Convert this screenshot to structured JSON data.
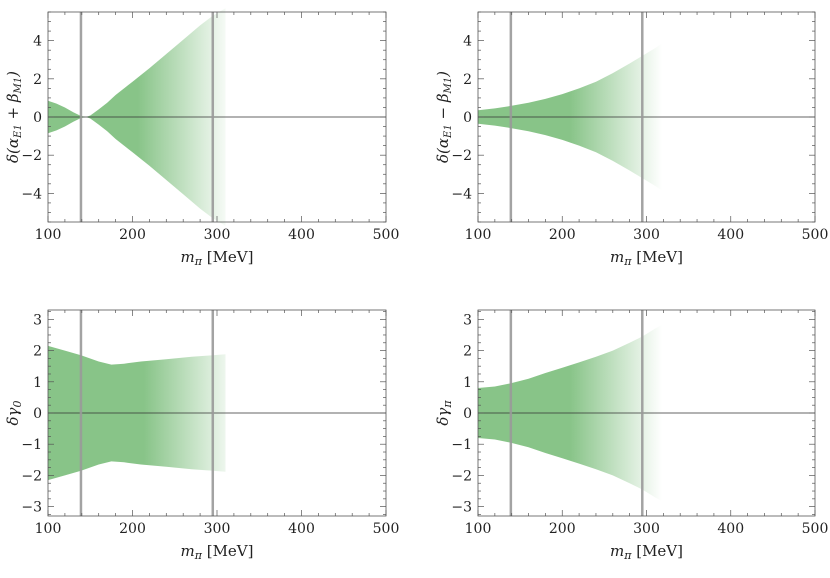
{
  "colors": {
    "band": "#5aad5a",
    "zero_line": "#333333",
    "marker_line": "#9a9a9a"
  },
  "chart_data": [
    {
      "type": "area",
      "ylabel_html": "δ(α<tspan font-size=\"10\" dy=\"3\">E1</tspan><tspan dy=\"-3\"> + β</tspan><tspan font-size=\"10\" dy=\"3\">M1</tspan><tspan dy=\"-3\">)</tspan>",
      "xlabel": "mπ [MeV]",
      "xlim": [
        100,
        500
      ],
      "ylim": [
        -5.5,
        5.5
      ],
      "xticks": [
        100,
        200,
        300,
        400,
        500
      ],
      "yticks": [
        -4,
        -2,
        0,
        2,
        4
      ],
      "vlines": [
        139,
        295
      ],
      "band": {
        "x": [
          100,
          110,
          120,
          130,
          139,
          145,
          150,
          160,
          170,
          180,
          200,
          220,
          240,
          260,
          280,
          295,
          310
        ],
        "upper": [
          0.85,
          0.7,
          0.5,
          0.25,
          0.05,
          0.0,
          0.08,
          0.4,
          0.75,
          1.15,
          1.85,
          2.55,
          3.3,
          4.05,
          4.8,
          5.3,
          5.7
        ],
        "lower": [
          -0.85,
          -0.7,
          -0.5,
          -0.25,
          -0.05,
          0.0,
          -0.08,
          -0.4,
          -0.75,
          -1.15,
          -1.85,
          -2.55,
          -3.3,
          -4.05,
          -4.8,
          -5.3,
          -5.7
        ]
      }
    },
    {
      "type": "area",
      "ylabel_html": "δ(α<tspan font-size=\"10\" dy=\"3\">E1</tspan><tspan dy=\"-3\"> − β</tspan><tspan font-size=\"10\" dy=\"3\">M1</tspan><tspan dy=\"-3\">)</tspan>",
      "xlabel": "mπ [MeV]",
      "xlim": [
        100,
        500
      ],
      "ylim": [
        -5.5,
        5.5
      ],
      "xticks": [
        100,
        200,
        300,
        400,
        500
      ],
      "yticks": [
        -4,
        -2,
        0,
        2,
        4
      ],
      "vlines": [
        139,
        295
      ],
      "band": {
        "x": [
          100,
          120,
          139,
          160,
          180,
          200,
          220,
          240,
          260,
          280,
          295,
          310,
          320
        ],
        "upper": [
          0.35,
          0.45,
          0.58,
          0.75,
          0.95,
          1.2,
          1.5,
          1.85,
          2.3,
          2.8,
          3.2,
          3.6,
          3.9
        ],
        "lower": [
          -0.35,
          -0.45,
          -0.58,
          -0.75,
          -0.95,
          -1.2,
          -1.5,
          -1.85,
          -2.3,
          -2.8,
          -3.2,
          -3.6,
          -3.9
        ]
      }
    },
    {
      "type": "area",
      "ylabel_html": "δγ<tspan font-size=\"11\" dy=\"3\">0</tspan>",
      "xlabel": "mπ [MeV]",
      "xlim": [
        100,
        500
      ],
      "ylim": [
        -3.3,
        3.3
      ],
      "xticks": [
        100,
        200,
        300,
        400,
        500
      ],
      "yticks": [
        -3,
        -2,
        -1,
        0,
        1,
        2,
        3
      ],
      "vlines": [
        139,
        295
      ],
      "band": {
        "x": [
          100,
          120,
          139,
          160,
          175,
          190,
          210,
          240,
          270,
          295,
          310
        ],
        "upper": [
          2.15,
          2.0,
          1.85,
          1.65,
          1.55,
          1.58,
          1.65,
          1.72,
          1.8,
          1.85,
          1.88
        ],
        "lower": [
          -2.15,
          -2.0,
          -1.85,
          -1.65,
          -1.55,
          -1.58,
          -1.65,
          -1.72,
          -1.8,
          -1.85,
          -1.88
        ]
      }
    },
    {
      "type": "area",
      "ylabel_html": "δγ<tspan font-size=\"11\" dy=\"3\">π</tspan>",
      "xlabel": "mπ [MeV]",
      "xlim": [
        100,
        500
      ],
      "ylim": [
        -3.3,
        3.3
      ],
      "xticks": [
        100,
        200,
        300,
        400,
        500
      ],
      "yticks": [
        -3,
        -2,
        -1,
        0,
        1,
        2,
        3
      ],
      "vlines": [
        139,
        295
      ],
      "band": {
        "x": [
          100,
          120,
          139,
          160,
          180,
          200,
          220,
          240,
          260,
          280,
          295,
          310,
          320
        ],
        "upper": [
          0.8,
          0.85,
          0.95,
          1.1,
          1.28,
          1.45,
          1.62,
          1.8,
          2.0,
          2.25,
          2.45,
          2.7,
          2.85
        ],
        "lower": [
          -0.8,
          -0.85,
          -0.95,
          -1.1,
          -1.28,
          -1.45,
          -1.62,
          -1.8,
          -2.0,
          -2.25,
          -2.45,
          -2.7,
          -2.85
        ]
      }
    }
  ]
}
